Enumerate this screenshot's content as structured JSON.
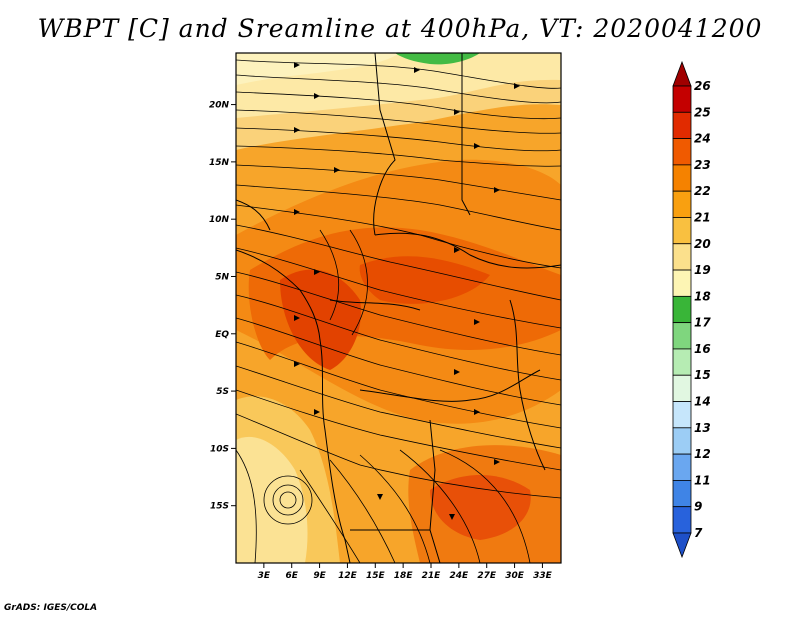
{
  "title": "WBPT [C] and Sreamline at 400hPa, VT: 2020041200",
  "footer": "GrADS: IGES/COLA",
  "map": {
    "lat_ticks": [
      "20N",
      "15N",
      "10N",
      "5N",
      "EQ",
      "5S",
      "10S",
      "15S"
    ],
    "lon_ticks": [
      "3E",
      "6E",
      "9E",
      "12E",
      "15E",
      "18E",
      "21E",
      "24E",
      "27E",
      "30E",
      "33E"
    ],
    "lon_range": [
      0,
      35
    ],
    "lat_range": [
      -20,
      24.5
    ]
  },
  "colorbar": {
    "labels": [
      "26",
      "25",
      "24",
      "23",
      "22",
      "21",
      "20",
      "19",
      "18",
      "17",
      "16",
      "15",
      "14",
      "13",
      "12",
      "11",
      "9",
      "7"
    ],
    "colors": [
      "#a00000",
      "#c40000",
      "#e12b00",
      "#f05a00",
      "#f58200",
      "#f9a010",
      "#f9c040",
      "#fbe08c",
      "#fdf5b4",
      "#39b538",
      "#7fd67e",
      "#b6ecb3",
      "#e1f7e1",
      "#c6e6fb",
      "#9ccdf5",
      "#6aa7f0",
      "#3f84e6",
      "#2862dc",
      "#1e50c8"
    ]
  }
}
